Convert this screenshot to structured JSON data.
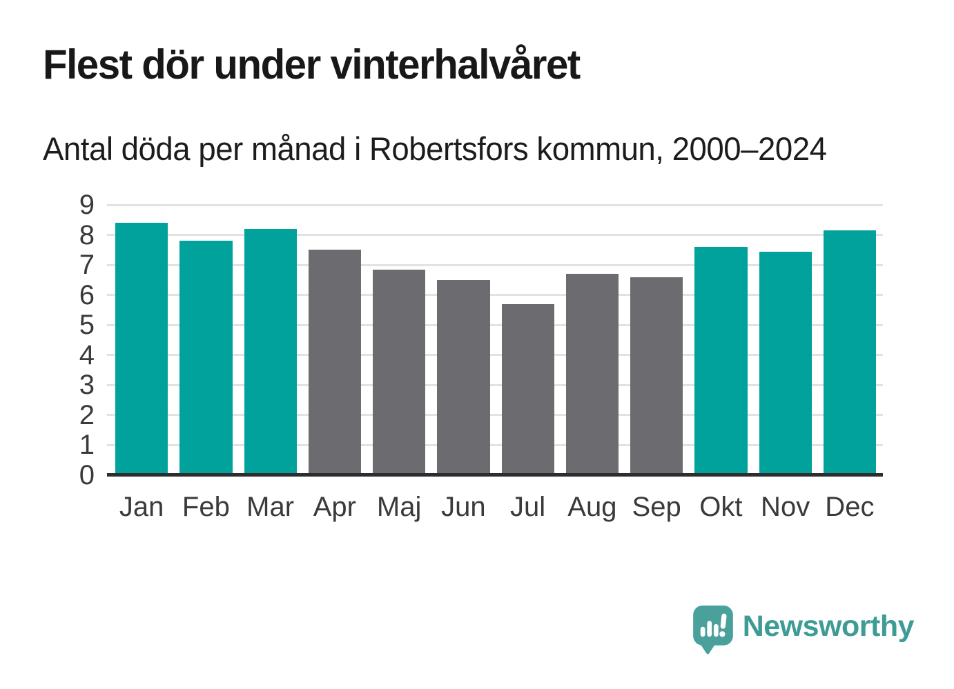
{
  "header": {
    "title": "Flest dör under vinterhalvåret",
    "subtitle": "Antal döda per månad i Robertsfors kommun, 2000–2024"
  },
  "chart_data": {
    "type": "bar",
    "title": "Flest dör under vinterhalvåret",
    "subtitle": "Antal döda per månad i Robertsfors kommun, 2000–2024",
    "categories": [
      "Jan",
      "Feb",
      "Mar",
      "Apr",
      "Maj",
      "Jun",
      "Jul",
      "Aug",
      "Sep",
      "Okt",
      "Nov",
      "Dec"
    ],
    "values": [
      8.4,
      7.8,
      8.2,
      7.5,
      6.85,
      6.5,
      5.7,
      6.7,
      6.6,
      7.6,
      7.45,
      8.15
    ],
    "bar_groups": [
      "winter",
      "winter",
      "winter",
      "summer",
      "summer",
      "summer",
      "summer",
      "summer",
      "summer",
      "winter",
      "winter",
      "winter"
    ],
    "group_colors": {
      "winter": "#00a29b",
      "summer": "#6b6b70"
    },
    "xlabel": "",
    "ylabel": "",
    "ylim": [
      0,
      9
    ],
    "yticks": [
      0,
      1,
      2,
      3,
      4,
      5,
      6,
      7,
      8,
      9
    ],
    "grid": true,
    "legend": "none",
    "gridline_color": "#e2e2e2",
    "axis_line_color": "#2d2d2d",
    "tick_label_color": "#3a3a3a"
  },
  "branding": {
    "logo_text": "Newsworthy",
    "logo_icon": "newsworthy-speech-bubble-barchart-icon",
    "logo_text_color": "#3e9b96",
    "logo_icon_color": "#4aa19c"
  }
}
